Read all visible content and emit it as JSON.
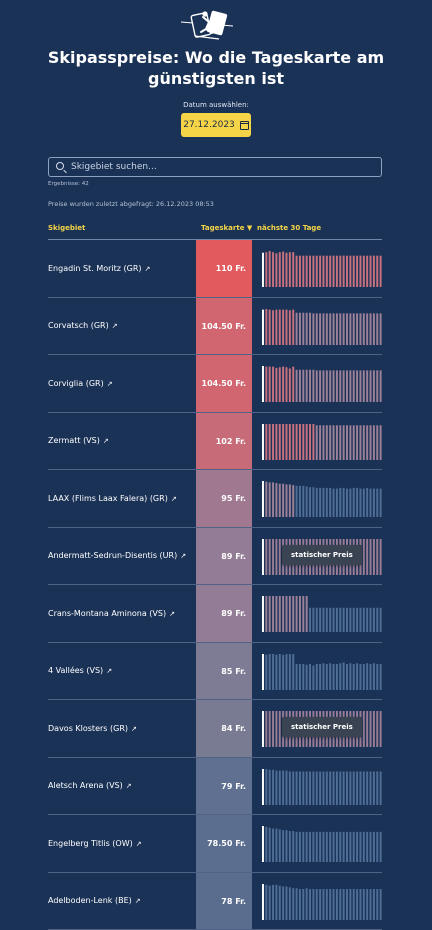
{
  "header": {
    "logo_icon": "skier-icon",
    "title": "Skipasspreise: Wo die Tageskarte am günstigsten ist"
  },
  "date_picker": {
    "label": "Datum auswählen:",
    "value": "27.12.2023",
    "icon": "calendar-icon"
  },
  "search": {
    "placeholder": "Skigebiet suchen...",
    "value": ""
  },
  "results_label": "Ergebnisse: 42",
  "last_updated": "Preise wurden zuletzt abgefragt: 26.12.2023 08:53",
  "table": {
    "columns": {
      "area": "Skigebiet",
      "price": "Tageskarte ▼",
      "next30": "nächste 30 Tage"
    },
    "static_label": "statischer Preis",
    "rows": [
      {
        "name": "Engadin St. Moritz (GR)",
        "price": "110 Fr.",
        "color": "#e05a5e",
        "static": false,
        "trend": [
          109,
          110,
          112,
          110,
          108,
          110,
          111,
          109,
          110,
          110,
          104,
          104,
          104,
          104,
          104,
          104,
          104,
          104,
          104,
          104,
          104,
          104,
          104,
          104,
          104,
          104,
          104,
          104,
          104,
          104,
          104,
          104,
          104,
          104,
          104,
          104
        ]
      },
      {
        "name": "Corvatsch (GR)",
        "price": "104.50 Fr.",
        "color": "#d16671",
        "static": false,
        "trend": [
          104,
          105,
          104,
          103,
          104,
          104,
          104,
          104,
          103,
          104,
          99,
          99,
          99,
          99,
          99,
          98,
          98,
          98,
          98,
          98,
          98,
          98,
          98,
          98,
          98,
          98,
          98,
          98,
          98,
          98,
          98,
          98,
          98,
          98,
          98,
          98
        ]
      },
      {
        "name": "Corviglia (GR)",
        "price": "104.50 Fr.",
        "color": "#d16671",
        "static": false,
        "trend": [
          105,
          104,
          104,
          104,
          102,
          103,
          104,
          103,
          101,
          104,
          99,
          99,
          99,
          99,
          99,
          99,
          98,
          98,
          98,
          98,
          98,
          98,
          98,
          98,
          98,
          98,
          98,
          98,
          98,
          98,
          98,
          98,
          98,
          98,
          98,
          98
        ]
      },
      {
        "name": "Zermatt (VS)",
        "price": "102 Fr.",
        "color": "#c86b79",
        "static": false,
        "trend": [
          102,
          102,
          102,
          102,
          102,
          102,
          102,
          102,
          102,
          102,
          102,
          102,
          102,
          102,
          102,
          102,
          100,
          100,
          100,
          100,
          100,
          100,
          100,
          100,
          100,
          100,
          100,
          100,
          100,
          100,
          100,
          100,
          100,
          100,
          100,
          100
        ]
      },
      {
        "name": "LAAX (Flims Laax Falera) (GR)",
        "price": "95 Fr.",
        "color": "#a07890",
        "static": false,
        "trend": [
          95,
          94,
          93,
          93,
          92,
          91,
          91,
          90,
          90,
          89,
          88,
          88,
          88,
          87,
          86,
          86,
          85,
          85,
          85,
          85,
          85,
          84,
          84,
          85,
          85,
          84,
          84,
          85,
          85,
          84,
          84,
          85,
          84,
          84,
          84,
          84
        ]
      },
      {
        "name": "Andermatt-Sedrun-Disentis (UR)",
        "price": "89 Fr.",
        "color": "#937c95",
        "static": true,
        "trend": [
          89,
          89,
          89,
          89,
          89,
          89,
          89,
          89,
          89,
          89,
          89,
          89,
          89,
          89,
          89,
          89,
          89,
          89,
          89,
          89,
          89,
          89,
          89,
          89,
          89,
          89,
          89,
          89,
          89,
          89,
          89,
          89,
          89,
          89,
          89,
          89
        ]
      },
      {
        "name": "Crans-Montana Aminona (VS)",
        "price": "89 Fr.",
        "color": "#937c95",
        "static": false,
        "trend": [
          89,
          89,
          89,
          89,
          89,
          89,
          89,
          89,
          89,
          89,
          89,
          89,
          89,
          89,
          73,
          73,
          73,
          73,
          73,
          73,
          73,
          73,
          73,
          73,
          73,
          73,
          73,
          73,
          73,
          73,
          73,
          73,
          73,
          73,
          73,
          73
        ]
      },
      {
        "name": "4 Vallées (VS)",
        "price": "85 Fr.",
        "color": "#7e7c94",
        "static": false,
        "trend": [
          85,
          84,
          85,
          85,
          84,
          85,
          84,
          85,
          85,
          85,
          72,
          72,
          72,
          71,
          72,
          70,
          72,
          72,
          73,
          72,
          73,
          72,
          72,
          73,
          74,
          72,
          73,
          72,
          73,
          72,
          72,
          73,
          72,
          73,
          72,
          72
        ]
      },
      {
        "name": "Davos Klosters (GR)",
        "price": "84 Fr.",
        "color": "#797b92",
        "static": true,
        "trend": [
          84,
          84,
          84,
          84,
          84,
          84,
          84,
          84,
          84,
          84,
          84,
          84,
          84,
          84,
          84,
          84,
          84,
          84,
          84,
          84,
          84,
          84,
          84,
          84,
          84,
          84,
          84,
          84,
          84,
          84,
          84,
          84,
          84,
          84,
          84,
          84
        ]
      },
      {
        "name": "Aletsch Arena (VS)",
        "price": "79 Fr.",
        "color": "#5f7090",
        "static": false,
        "trend": [
          79,
          79,
          78,
          78,
          77,
          77,
          77,
          77,
          76,
          76,
          76,
          76,
          76,
          76,
          76,
          76,
          76,
          76,
          76,
          76,
          76,
          76,
          76,
          76,
          76,
          76,
          76,
          76,
          76,
          76,
          76,
          76,
          76,
          76,
          76,
          76
        ]
      },
      {
        "name": "Engelberg Titlis (OW)",
        "price": "78.50 Fr.",
        "color": "#5c6e90",
        "static": false,
        "trend": [
          78,
          77,
          76,
          75,
          75,
          74,
          73,
          73,
          72,
          72,
          71,
          71,
          71,
          71,
          71,
          71,
          71,
          71,
          71,
          71,
          71,
          71,
          71,
          71,
          71,
          71,
          71,
          71,
          71,
          71,
          71,
          71,
          71,
          71,
          71,
          71
        ]
      },
      {
        "name": "Adelboden-Lenk (BE)",
        "price": "78 Fr.",
        "color": "#5a6d8f",
        "static": false,
        "trend": [
          78,
          77,
          76,
          77,
          77,
          76,
          75,
          75,
          74,
          73,
          73,
          72,
          72,
          73,
          72,
          72,
          72,
          72,
          72,
          72,
          72,
          72,
          72,
          72,
          72,
          72,
          72,
          72,
          72,
          72,
          72,
          72,
          72,
          72,
          72,
          72
        ]
      }
    ]
  }
}
